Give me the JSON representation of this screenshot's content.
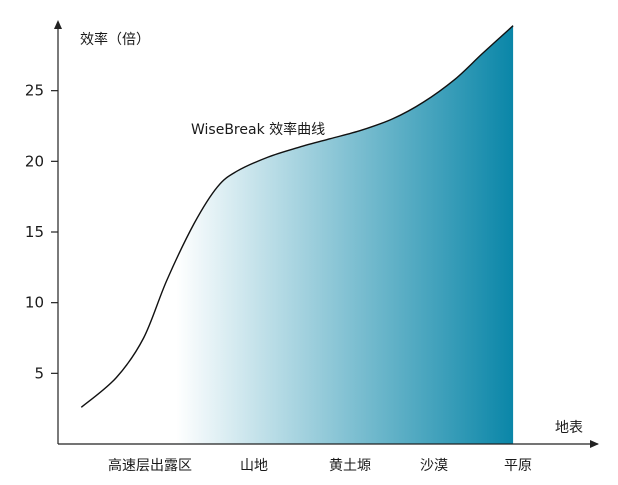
{
  "chart_data": {
    "type": "area",
    "ylabel": "效率（倍）",
    "xlabel": "地表",
    "annotation": "WiseBreak 效率曲线",
    "categories": [
      "高速层出露区",
      "山地",
      "黄土塬",
      "沙漠",
      "平原"
    ],
    "yticks": [
      5,
      10,
      15,
      20,
      25
    ],
    "ylim": [
      0,
      30
    ],
    "xlim": [
      0,
      6.35
    ],
    "grid": false,
    "series": [
      {
        "points": [
          [
            0.3,
            2.6
          ],
          [
            0.75,
            4.7
          ],
          [
            1.1,
            7.5
          ],
          [
            1.4,
            11.6
          ],
          [
            1.75,
            15.6
          ],
          [
            2.05,
            18.2
          ],
          [
            2.3,
            19.3
          ],
          [
            2.7,
            20.3
          ],
          [
            3.1,
            21.0
          ],
          [
            3.5,
            21.6
          ],
          [
            3.9,
            22.2
          ],
          [
            4.3,
            23.0
          ],
          [
            4.7,
            24.2
          ],
          [
            5.1,
            25.8
          ],
          [
            5.45,
            27.6
          ],
          [
            5.85,
            29.6
          ]
        ],
        "fill_gradient": [
          "#ffffff",
          "#0a86a8"
        ]
      }
    ],
    "colors": {
      "line": "#111111",
      "fill_end": "#0a86a8",
      "axis": "#222222"
    }
  }
}
